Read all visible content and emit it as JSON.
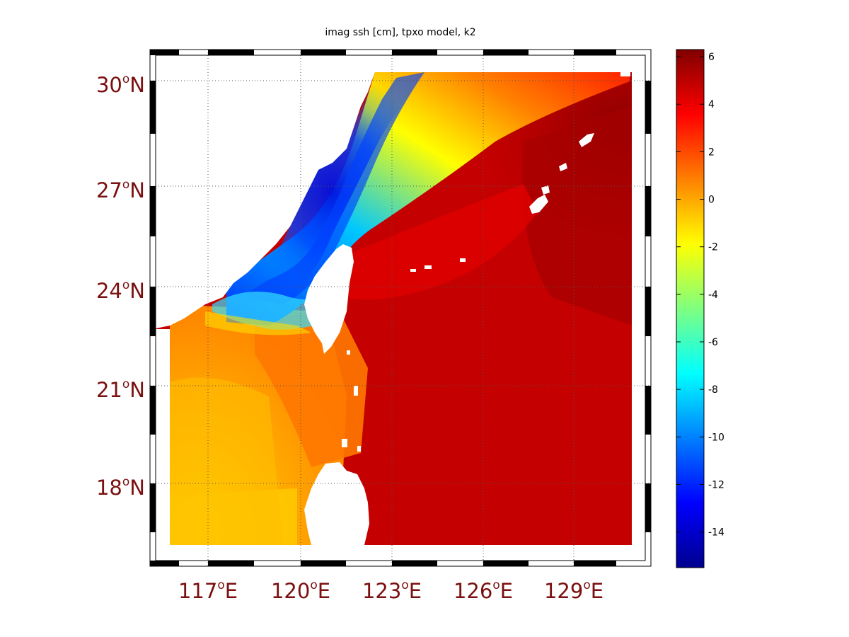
{
  "title": "imag ssh [cm], tpxo model, k2",
  "map": {
    "lat_labels": [
      {
        "value": 30,
        "deg": "30",
        "suffix": "N"
      },
      {
        "value": 27,
        "deg": "27",
        "suffix": "N"
      },
      {
        "value": 24,
        "deg": "24",
        "suffix": "N"
      },
      {
        "value": 21,
        "deg": "21",
        "suffix": "N"
      },
      {
        "value": 18,
        "deg": "18",
        "suffix": "N"
      }
    ],
    "lon_labels": [
      {
        "value": 117,
        "deg": "117",
        "suffix": "E"
      },
      {
        "value": 120,
        "deg": "120",
        "suffix": "E"
      },
      {
        "value": 123,
        "deg": "123",
        "suffix": "E"
      },
      {
        "value": 126,
        "deg": "126",
        "suffix": "E"
      },
      {
        "value": 129,
        "deg": "129",
        "suffix": "E"
      }
    ],
    "lon_range": [
      115.1,
      131.6
    ],
    "lat_range": [
      15.2,
      31
    ]
  },
  "colorbar": {
    "range": [
      -15.5,
      6.3
    ],
    "ticks": [
      "6",
      "4",
      "2",
      "0",
      "-2",
      "-4",
      "-6",
      "-8",
      "-10",
      "-12",
      "-14"
    ],
    "tick_values": [
      6,
      4,
      2,
      0,
      -2,
      -4,
      -6,
      -8,
      -10,
      -12,
      -14
    ],
    "colormap": "jet"
  },
  "chart_data": {
    "type": "heatmap",
    "title": "imag ssh [cm], tpxo model, k2",
    "xlabel": "",
    "ylabel": "",
    "x_ticks": [
      "117°E",
      "120°E",
      "123°E",
      "126°E",
      "129°E"
    ],
    "y_ticks": [
      "30°N",
      "27°N",
      "24°N",
      "21°N",
      "18°N"
    ],
    "value_range": [
      -15.5,
      6.3
    ],
    "grid": true,
    "approx_field": [
      {
        "lon": 116,
        "lat": 16.5,
        "value": -1
      },
      {
        "lon": 117,
        "lat": 20,
        "value": 0
      },
      {
        "lon": 119.5,
        "lat": 21,
        "value": 1
      },
      {
        "lon": 119,
        "lat": 22.9,
        "value": -6
      },
      {
        "lon": 119.5,
        "lat": 25.5,
        "value": -14
      },
      {
        "lon": 122,
        "lat": 28,
        "value": -12
      },
      {
        "lon": 125,
        "lat": 29.5,
        "value": -2
      },
      {
        "lon": 125,
        "lat": 27,
        "value": 3
      },
      {
        "lon": 127,
        "lat": 20,
        "value": 5
      },
      {
        "lon": 130,
        "lat": 27,
        "value": 6
      }
    ]
  }
}
